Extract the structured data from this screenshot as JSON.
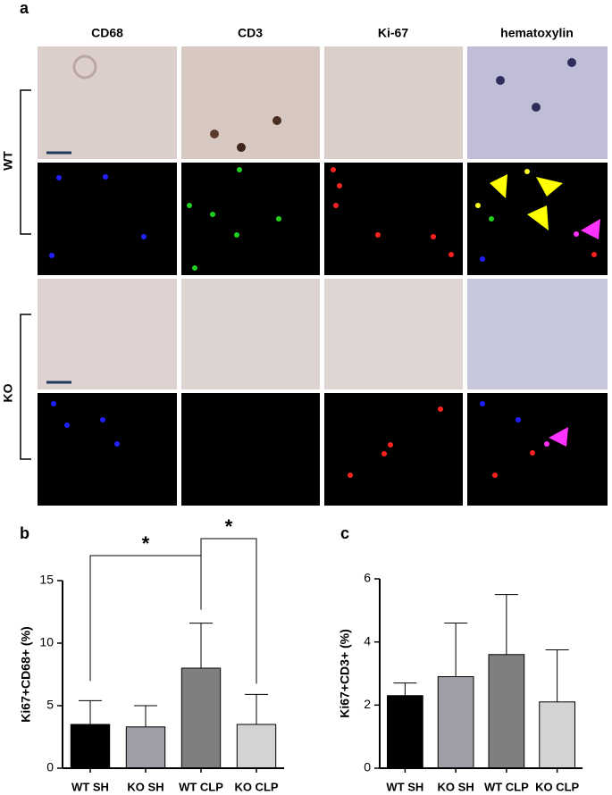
{
  "panel_labels": [
    "a",
    "b",
    "c"
  ],
  "columns": [
    "CD68",
    "CD3",
    "Ki-67",
    "hematoxylin"
  ],
  "rows": [
    "WT",
    "KO"
  ],
  "chart_data": [
    {
      "type": "bar",
      "ylabel": "Ki67+CD68+ (%)",
      "categories": [
        "WT SH",
        "KO SH",
        "WT CLP",
        "KO CLP"
      ],
      "values": [
        3.5,
        3.3,
        8.0,
        3.5
      ],
      "errors": [
        1.9,
        1.7,
        3.6,
        2.4
      ],
      "colors": [
        "#000000",
        "#9e9ea6",
        "#7f7f7f",
        "#d3d3d3"
      ],
      "ylim": [
        0,
        15
      ],
      "yticks": [
        0,
        5,
        10,
        15
      ],
      "annotations": [
        "*",
        "*"
      ]
    },
    {
      "type": "bar",
      "ylabel": "Ki67+CD3+ (%)",
      "categories": [
        "WT SH",
        "KO SH",
        "WT CLP",
        "KO CLP"
      ],
      "values": [
        2.3,
        2.9,
        3.6,
        2.1
      ],
      "errors": [
        0.4,
        1.7,
        1.9,
        1.65
      ],
      "colors": [
        "#000000",
        "#9e9ea6",
        "#7f7f7f",
        "#d3d3d3"
      ],
      "ylim": [
        0,
        6
      ],
      "yticks": [
        0,
        2,
        4,
        6
      ]
    }
  ]
}
